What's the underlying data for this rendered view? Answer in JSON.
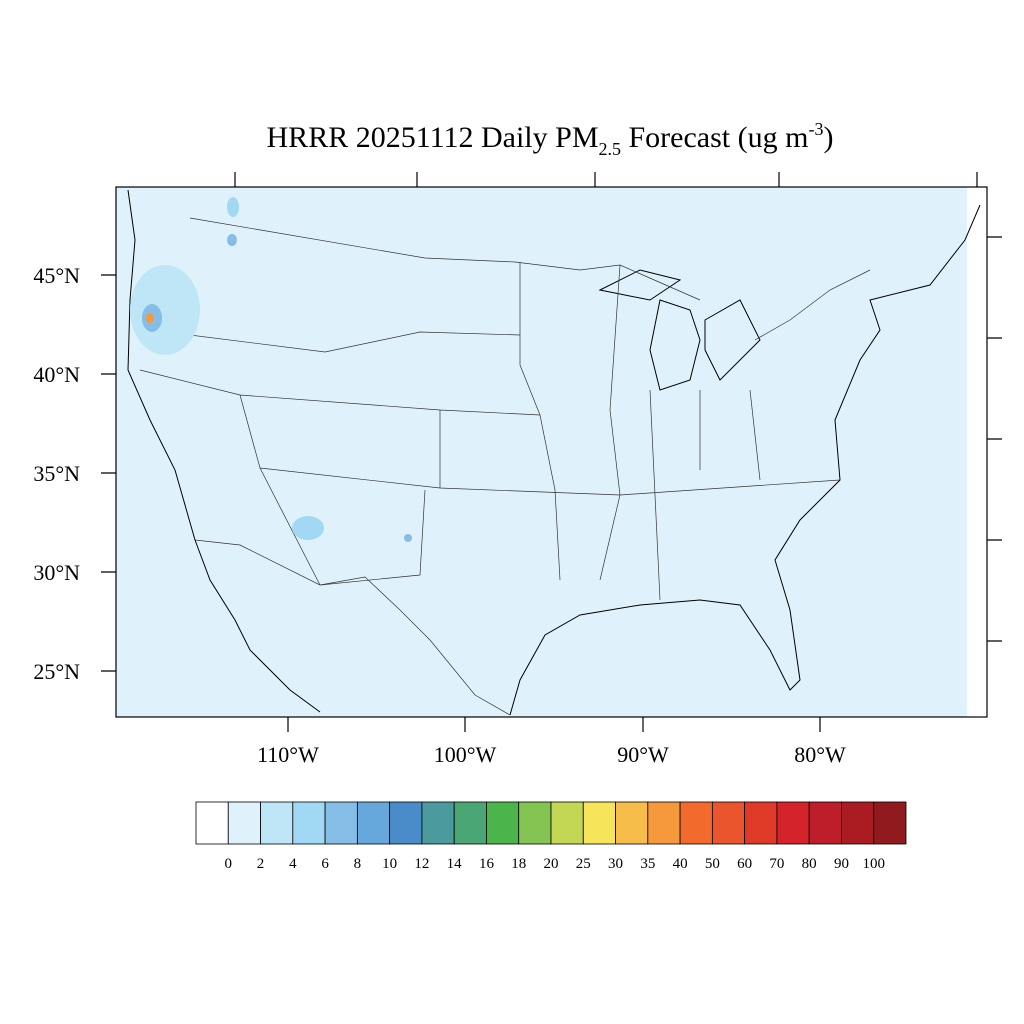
{
  "header": {
    "title": "HRRR 20251112 Daily PM",
    "title_sub": "2.5",
    "title_rest": " Forecast (ug m",
    "title_sup": "-3",
    "title_end": ")"
  },
  "lat_labels": [
    "45°N",
    "40°N",
    "35°N",
    "30°N",
    "25°N"
  ],
  "lon_labels": [
    "110°W",
    "100°W",
    "90°W",
    "80°W"
  ],
  "colorbar": {
    "levels": [
      0,
      2,
      4,
      6,
      8,
      10,
      12,
      14,
      16,
      18,
      20,
      25,
      30,
      35,
      40,
      50,
      60,
      70,
      80,
      90,
      100
    ],
    "colors": [
      "#ffffff",
      "#dff2fb",
      "#bfe6f7",
      "#a1d8f3",
      "#84bde6",
      "#67a8dc",
      "#4a8cc9",
      "#4a9a9e",
      "#4aa674",
      "#4bb44b",
      "#84c452",
      "#c3d755",
      "#f6e55a",
      "#f7bd4a",
      "#f5993c",
      "#f26b2d",
      "#ea552d",
      "#df3a28",
      "#d4232b",
      "#be1d2a",
      "#aa1c22",
      "#901b1f"
    ]
  }
}
